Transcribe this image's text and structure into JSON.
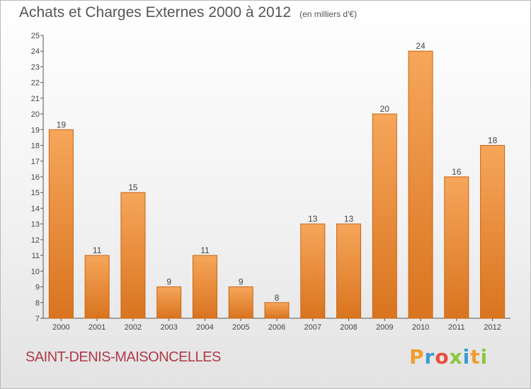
{
  "header": {
    "title": "Achats et Charges Externes 2000 à 2012",
    "subtitle": "(en milliers d'€)"
  },
  "footer": {
    "commune": "SAINT-DENIS-MAISONCELLES",
    "logo_letters": [
      "P",
      "r",
      "o",
      "x",
      "i",
      "t",
      "i"
    ],
    "logo_colors": [
      "#f19d2f",
      "#3b9bd3",
      "#e94c3d",
      "#8cc63f",
      "#3b9bd3",
      "#f19d2f",
      "#8cc63f"
    ]
  },
  "chart_data": {
    "type": "bar",
    "title": "Achats et Charges Externes 2000 à 2012",
    "subtitle": "(en milliers d'€)",
    "categories": [
      "2000",
      "2001",
      "2002",
      "2003",
      "2004",
      "2005",
      "2006",
      "2007",
      "2008",
      "2009",
      "2010",
      "2011",
      "2012"
    ],
    "values": [
      19,
      11,
      15,
      9,
      11,
      9,
      8,
      13,
      13,
      20,
      24,
      16,
      18
    ],
    "ylim": [
      7,
      25
    ],
    "yticks": [
      7,
      8,
      9,
      10,
      11,
      12,
      13,
      14,
      15,
      16,
      17,
      18,
      19,
      20,
      21,
      22,
      23,
      24,
      25
    ],
    "grid": false,
    "bar_color_top": "#f6a65a",
    "bar_color_bottom": "#d9741f",
    "bar_edge_color": "#c86414"
  }
}
